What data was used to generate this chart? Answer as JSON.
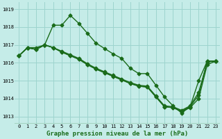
{
  "title": "Graphe pression niveau de la mer (hPa)",
  "background_color": "#c5ece8",
  "grid_color": "#9dd4ce",
  "line_color": "#1a6b1a",
  "x_ticks": [
    0,
    1,
    2,
    3,
    4,
    5,
    6,
    7,
    8,
    9,
    10,
    11,
    12,
    13,
    14,
    15,
    16,
    17,
    18,
    19,
    20,
    21,
    22,
    23
  ],
  "ylim": [
    1012.6,
    1019.4
  ],
  "yticks": [
    1013,
    1014,
    1015,
    1016,
    1017,
    1018,
    1019
  ],
  "series": [
    [
      1016.4,
      1016.85,
      1016.85,
      1017.0,
      1018.1,
      1018.1,
      1018.65,
      1018.2,
      1017.65,
      1017.1,
      1016.8,
      1016.5,
      1016.25,
      1015.7,
      1015.4,
      1015.4,
      1014.75,
      1014.1,
      1013.6,
      1013.2,
      1013.55,
      1015.0,
      1016.1,
      1016.1
    ],
    [
      1016.4,
      1016.85,
      1016.75,
      1017.0,
      1016.85,
      1016.6,
      1016.4,
      1016.2,
      1015.9,
      1015.65,
      1015.45,
      1015.25,
      1015.05,
      1014.85,
      1014.7,
      1014.65,
      1014.1,
      1013.55,
      1013.5,
      1013.3,
      1013.55,
      1014.2,
      1016.1,
      1016.1
    ],
    [
      1016.4,
      1016.85,
      1016.75,
      1017.0,
      1016.85,
      1016.6,
      1016.4,
      1016.2,
      1015.9,
      1015.65,
      1015.45,
      1015.25,
      1015.05,
      1014.85,
      1014.7,
      1014.65,
      1014.1,
      1013.55,
      1013.5,
      1013.28,
      1013.5,
      1014.0,
      1015.9,
      1016.1
    ],
    [
      1016.4,
      1016.85,
      1016.75,
      1017.0,
      1016.85,
      1016.65,
      1016.45,
      1016.25,
      1015.95,
      1015.7,
      1015.5,
      1015.3,
      1015.1,
      1014.9,
      1014.75,
      1014.7,
      1014.15,
      1013.6,
      1013.55,
      1013.35,
      1013.6,
      1014.35,
      1016.05,
      1016.1
    ]
  ],
  "marker": "D",
  "marker_size": 2.5,
  "linewidth": 1.0,
  "tick_fontsize": 5.0,
  "xlabel_fontsize": 6.5
}
